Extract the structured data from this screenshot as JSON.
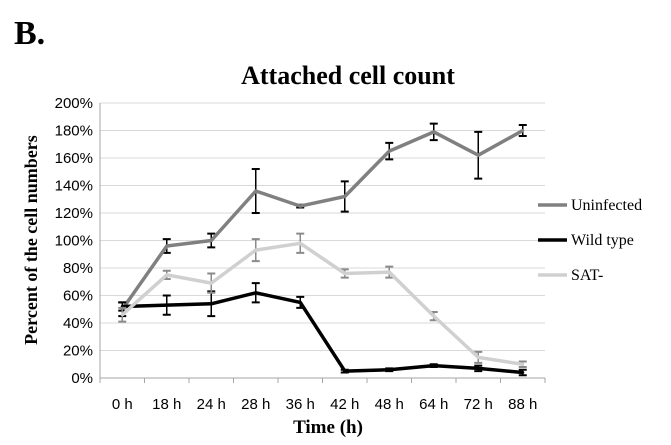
{
  "panel_label": "B.",
  "chart_data": {
    "type": "line",
    "title": "Attached cell count",
    "xlabel": "Time  (h)",
    "ylabel": "Percent of the cell numbers",
    "categories": [
      "0 h",
      "18 h",
      "24 h",
      "28 h",
      "36 h",
      "42 h",
      "48 h",
      "64 h",
      "72 h",
      "88 h"
    ],
    "ylim": [
      0,
      200
    ],
    "yticks": [
      0,
      20,
      40,
      60,
      80,
      100,
      120,
      140,
      160,
      180,
      200
    ],
    "ytick_labels": [
      "0%",
      "20%",
      "40%",
      "60%",
      "80%",
      "100%",
      "120%",
      "140%",
      "160%",
      "180%",
      "200%"
    ],
    "grid": true,
    "legend_position": "right",
    "series": [
      {
        "name": "Uninfected",
        "color": "#808080",
        "values": [
          50,
          96,
          100,
          136,
          125,
          132,
          165,
          179,
          162,
          180
        ],
        "errors": [
          5,
          5,
          5,
          16,
          1,
          11,
          6,
          6,
          17,
          4
        ]
      },
      {
        "name": "Wild type",
        "color": "#000000",
        "values": [
          52,
          53,
          54,
          62,
          55,
          5,
          6,
          9,
          7,
          4
        ],
        "errors": [
          3,
          7,
          9,
          7,
          4,
          1,
          1,
          1,
          2,
          2
        ]
      },
      {
        "name": "SAT-",
        "color": "#d0d0d0",
        "values": [
          46,
          75,
          69,
          93,
          98,
          76,
          77,
          45,
          15,
          10
        ],
        "errors": [
          5,
          3,
          7,
          8,
          7,
          3,
          4,
          3,
          4,
          2
        ]
      }
    ]
  }
}
